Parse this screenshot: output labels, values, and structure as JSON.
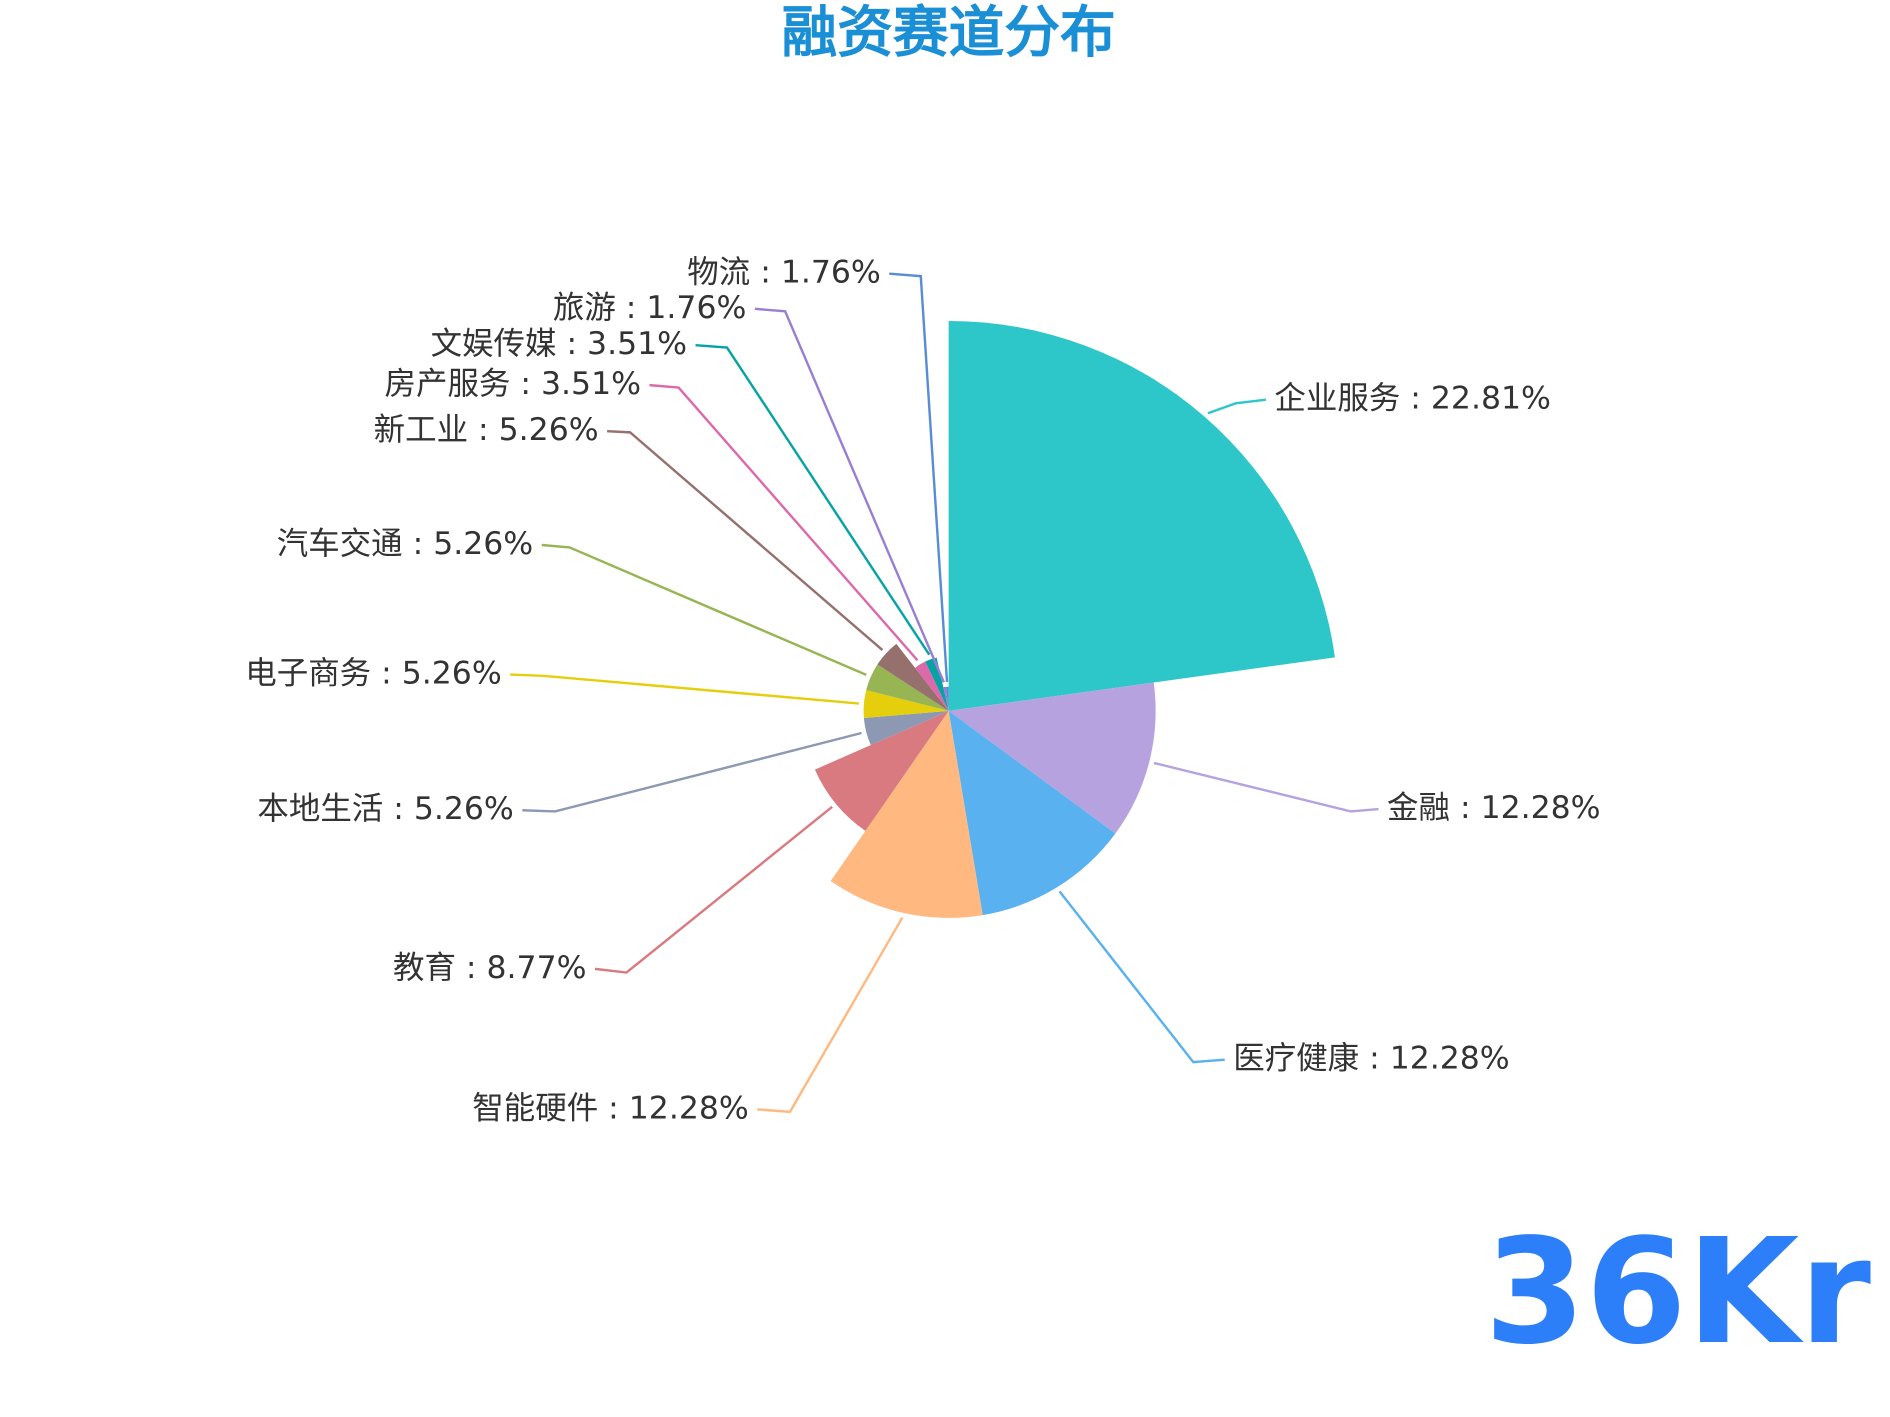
{
  "chart_data": {
    "type": "rose",
    "title": "融资赛道分布",
    "logo": "36Kr",
    "categories": [
      "企业服务",
      "金融",
      "医疗健康",
      "智能硬件",
      "教育",
      "本地生活",
      "电子商务",
      "汽车交通",
      "新工业",
      "房产服务",
      "文娱传媒",
      "旅游",
      "物流"
    ],
    "values": [
      22.81,
      12.28,
      12.28,
      12.28,
      8.77,
      5.26,
      5.26,
      5.26,
      5.26,
      3.51,
      3.51,
      1.76,
      1.76
    ],
    "value_labels": [
      "企业服务 : 22.81%",
      "金融 : 12.28%",
      "医疗健康 : 12.28%",
      "智能硬件 : 12.28%",
      "教育 : 8.77%",
      "本地生活 : 5.26%",
      "电子商务 : 5.26%",
      "汽车交通 : 5.26%",
      "新工业 : 5.26%",
      "房产服务 : 3.51%",
      "文娱传媒 : 3.51%",
      "旅游 : 1.76%",
      "物流 : 1.76%"
    ],
    "colors": [
      "#2ec7c9",
      "#b6a2de",
      "#5ab1ef",
      "#ffb980",
      "#d87a80",
      "#8d98b3",
      "#e5cf0d",
      "#97b552",
      "#95706d",
      "#dc69aa",
      "#07a2a4",
      "#9a7fd1",
      "#588dd5"
    ]
  }
}
